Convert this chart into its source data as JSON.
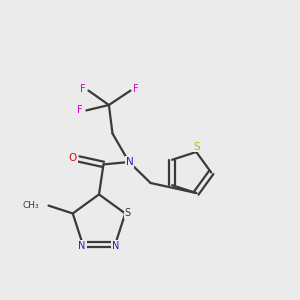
{
  "background_color": "#ebebeb",
  "bond_color": "#3a3a3a",
  "N_color": "#2020cc",
  "O_color": "#cc1111",
  "S_thiophene_color": "#b8b800",
  "S_thiadiazole_color": "#3a3a3a",
  "F_color": "#cc00cc",
  "figsize": [
    3.0,
    3.0
  ],
  "dpi": 100,
  "xlim": [
    0,
    10
  ],
  "ylim": [
    0,
    10
  ]
}
